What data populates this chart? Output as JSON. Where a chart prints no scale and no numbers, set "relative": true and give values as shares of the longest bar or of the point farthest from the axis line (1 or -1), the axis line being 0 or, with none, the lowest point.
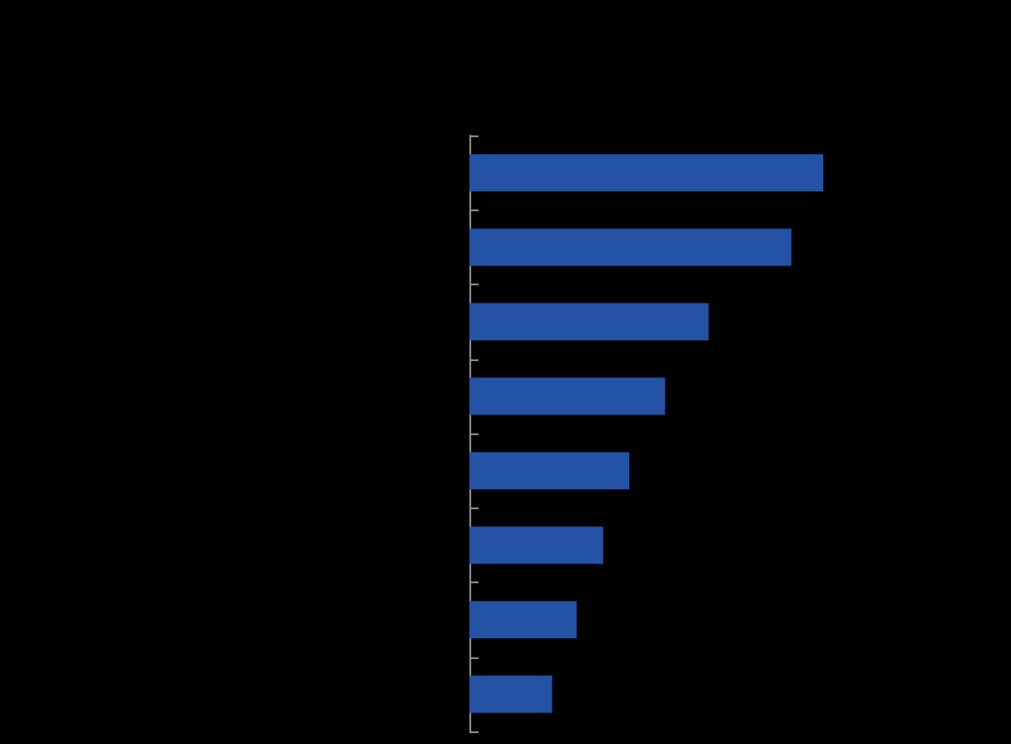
{
  "chart_data": {
    "type": "bar",
    "orientation": "horizontal",
    "relative": true,
    "categories": [
      null,
      null,
      null,
      null,
      null,
      null,
      null,
      null
    ],
    "values": [
      1,
      0.91,
      0.676,
      0.553,
      0.452,
      0.378,
      0.303,
      0.234
    ],
    "color": "#2452a4"
  }
}
